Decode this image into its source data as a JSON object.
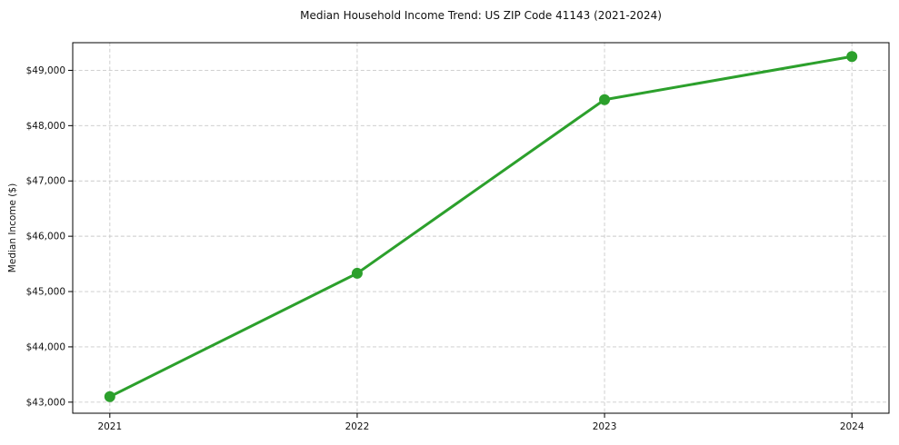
{
  "chart_data": {
    "type": "line",
    "title": "Median Household Income Trend: US ZIP Code 41143 (2021-2024)",
    "xlabel": "",
    "ylabel": "Median Income ($)",
    "x": [
      2021,
      2022,
      2023,
      2024
    ],
    "x_tick_labels": [
      "2021",
      "2022",
      "2023",
      "2024"
    ],
    "series": [
      {
        "name": "Median Household Income",
        "values": [
          43100,
          45330,
          48470,
          49250
        ]
      }
    ],
    "y_ticks": [
      43000,
      44000,
      45000,
      46000,
      47000,
      48000,
      49000
    ],
    "y_tick_labels": [
      "$43,000",
      "$44,000",
      "$45,000",
      "$46,000",
      "$47,000",
      "$48,000",
      "$49,000"
    ],
    "xlim": [
      2020.85,
      2024.15
    ],
    "ylim": [
      42800,
      49500
    ],
    "grid": true,
    "legend": false,
    "line_color": "#2ca02c",
    "marker": "circle",
    "marker_radius": 6,
    "background": "#ffffff"
  }
}
